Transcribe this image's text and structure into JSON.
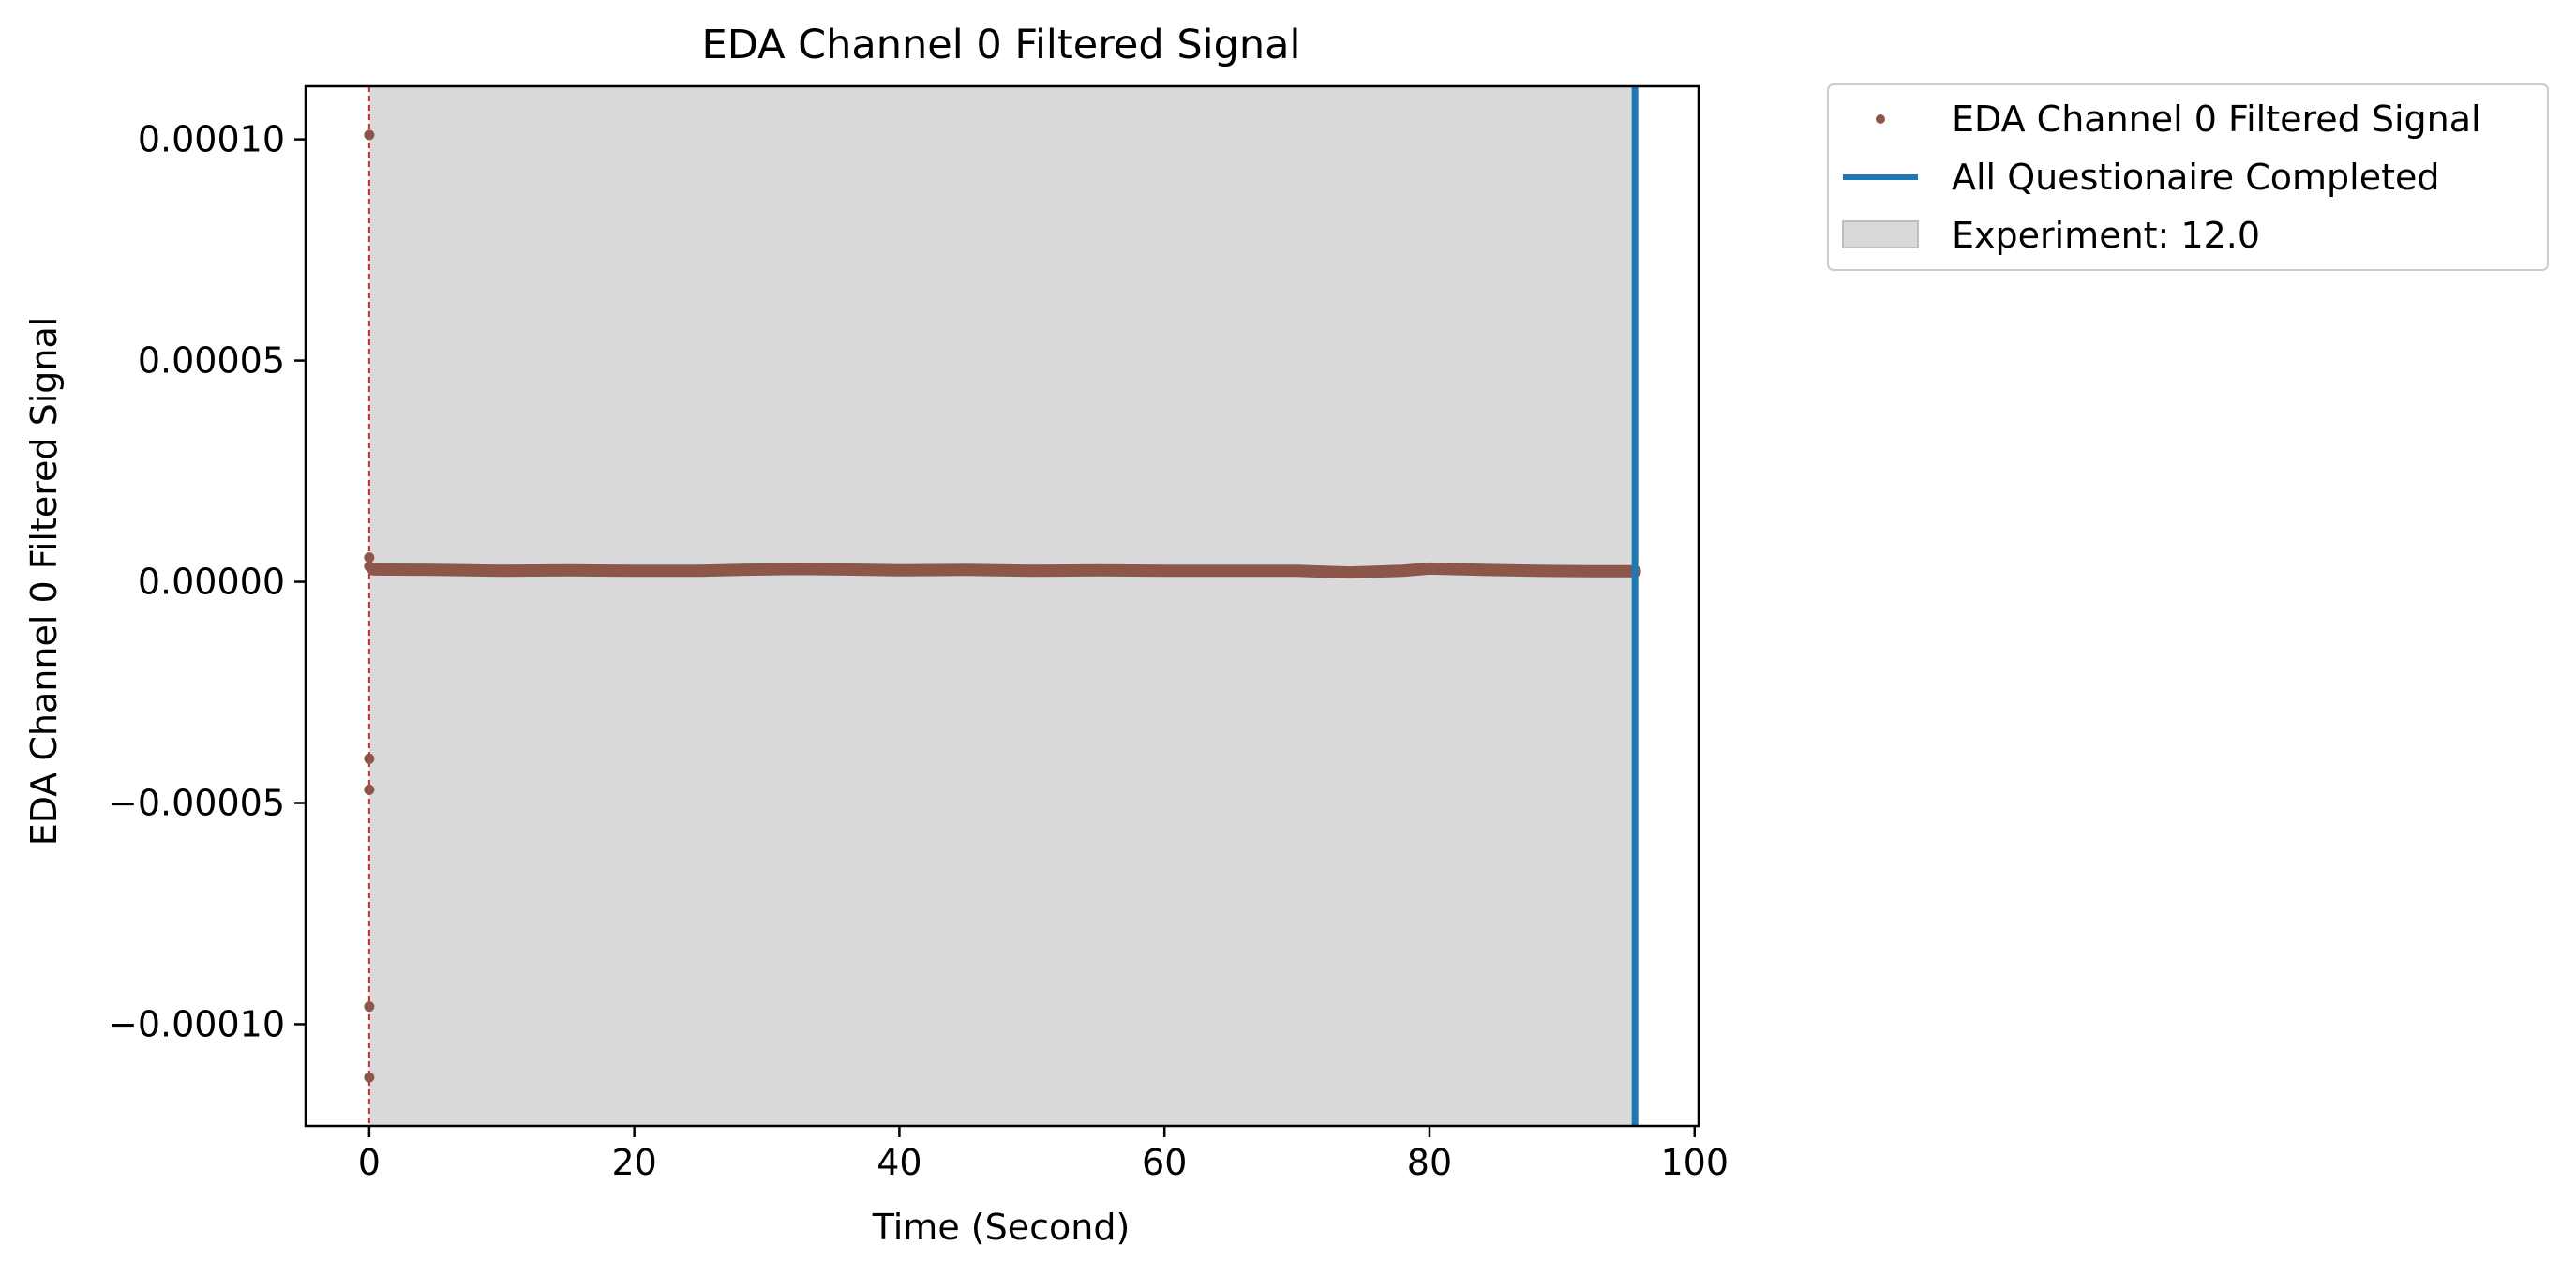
{
  "chart_data": {
    "type": "scatter",
    "title": "EDA Channel 0 Filtered Signal",
    "xlabel": "Time (Second)",
    "ylabel": "EDA Channel 0 Filtered Signal",
    "xlim": [
      -4.8,
      100.3
    ],
    "ylim": [
      -0.000123,
      0.000112
    ],
    "x_ticks": [
      0,
      20,
      40,
      60,
      80,
      100
    ],
    "x_tick_labels": [
      "0",
      "20",
      "40",
      "60",
      "80",
      "100"
    ],
    "y_ticks": [
      -0.0001,
      -5e-05,
      0.0,
      5e-05,
      0.0001
    ],
    "y_tick_labels": [
      "−0.00010",
      "−0.00005",
      "0.00000",
      "0.00005",
      "0.00010"
    ],
    "grid": false,
    "legend": {
      "placement": "outside-top-right",
      "entries": [
        {
          "label": "EDA Channel 0 Filtered Signal",
          "kind": "marker",
          "color": "#8c564b"
        },
        {
          "label": "All Questionaire Completed",
          "kind": "line",
          "color": "#1f77b4"
        },
        {
          "label": "Experiment: 12.0",
          "kind": "patch",
          "color": "#d9d9d9"
        }
      ]
    },
    "series": [
      {
        "name": "EDA Channel 0 Filtered Signal",
        "color": "#8c564b",
        "spikes": [
          {
            "x": 0.0,
            "y": 0.000101
          },
          {
            "x": 0.0,
            "y": 5.5e-06
          },
          {
            "x": 0.0,
            "y": 3.5e-06
          },
          {
            "x": 0.0,
            "y": -4e-05
          },
          {
            "x": 0.0,
            "y": -4.7e-05
          },
          {
            "x": 0.0,
            "y": -9.6e-05
          },
          {
            "x": 0.0,
            "y": -0.000112
          }
        ],
        "trace": {
          "x": [
            0.3,
            5,
            10,
            15,
            20,
            25,
            28,
            32,
            36,
            40,
            45,
            50,
            55,
            60,
            65,
            70,
            74,
            78,
            80,
            84,
            88,
            92,
            95.5
          ],
          "y": [
            2.8e-06,
            2.7e-06,
            2.5e-06,
            2.6e-06,
            2.5e-06,
            2.5e-06,
            2.7e-06,
            2.9e-06,
            2.8e-06,
            2.6e-06,
            2.7e-06,
            2.5e-06,
            2.6e-06,
            2.5e-06,
            2.5e-06,
            2.5e-06,
            2.1e-06,
            2.5e-06,
            3e-06,
            2.7e-06,
            2.5e-06,
            2.4e-06,
            2.4e-06
          ]
        }
      }
    ],
    "annotations": {
      "experiment_span": {
        "label": "Experiment: 12.0",
        "x_start": 0.0,
        "x_end": 95.5,
        "color": "#d9d9d9"
      },
      "completion_line": {
        "label": "All Questionaire Completed",
        "x": 95.5,
        "color": "#1f77b4"
      },
      "start_marker": {
        "x": 0.0,
        "color": "#d62728",
        "style": "dashed"
      }
    }
  }
}
